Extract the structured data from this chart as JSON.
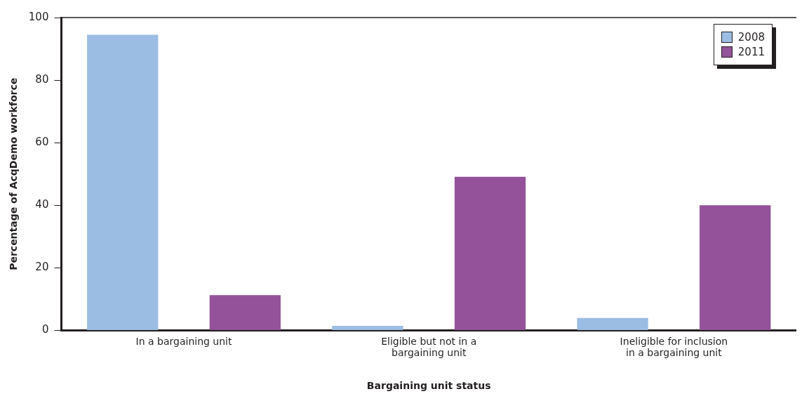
{
  "chart_data": {
    "type": "bar",
    "xlabel": "Bargaining unit status",
    "ylabel": "Percentage of AcqDemo workforce",
    "categories": [
      "In a bargaining unit",
      "Eligible but not in a bargaining unit",
      "Ineligible for inclusion in a bargaining unit"
    ],
    "series": [
      {
        "name": "2008",
        "color": "#9bbde3",
        "values": [
          94.5,
          1.5,
          4
        ]
      },
      {
        "name": "2011",
        "color": "#935299",
        "values": [
          11.3,
          49.1,
          40
        ]
      }
    ],
    "ylim": [
      0,
      100
    ],
    "yticks": [
      0,
      20,
      40,
      60,
      80,
      100
    ],
    "grid": false,
    "legend": "top right"
  }
}
